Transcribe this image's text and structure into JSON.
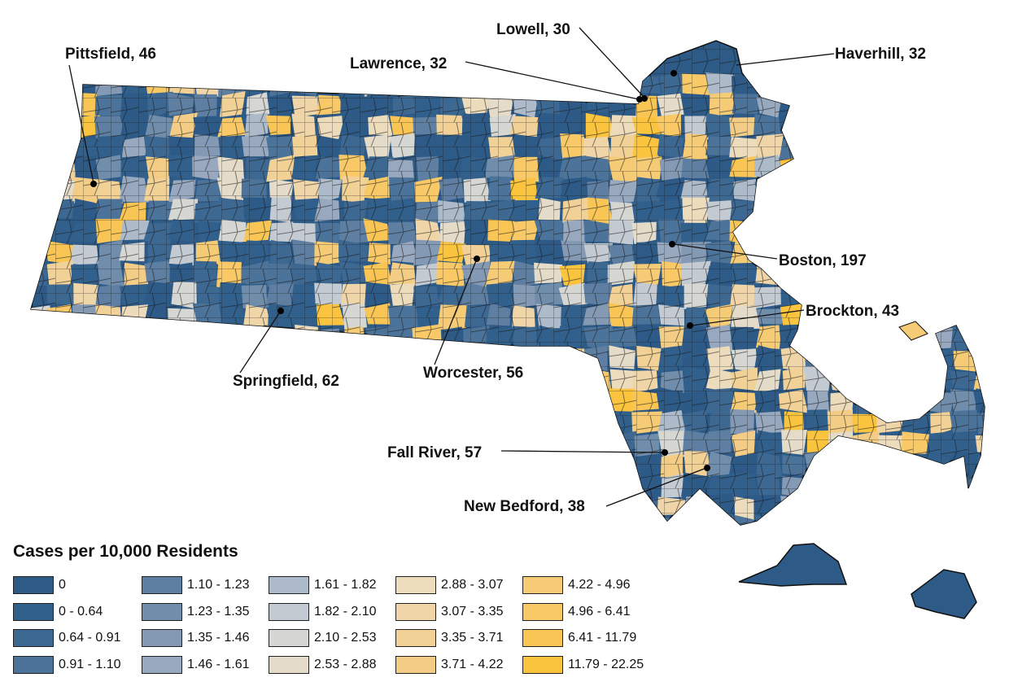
{
  "legend": {
    "title": "Cases per 10,000 Residents",
    "items": [
      {
        "label": "0",
        "color": "#2d5a86"
      },
      {
        "label": "0 - 0.64",
        "color": "#32608c"
      },
      {
        "label": "0.64 - 0.91",
        "color": "#3d6892"
      },
      {
        "label": "0.91 - 1.10",
        "color": "#4c7399"
      },
      {
        "label": "1.10 - 1.23",
        "color": "#5e7fa2"
      },
      {
        "label": "1.23 - 1.35",
        "color": "#708dac"
      },
      {
        "label": "1.35 - 1.46",
        "color": "#8499b3"
      },
      {
        "label": "1.46 - 1.61",
        "color": "#98a9bf"
      },
      {
        "label": "1.61 - 1.82",
        "color": "#adbac9"
      },
      {
        "label": "1.82 - 2.10",
        "color": "#c3cad2"
      },
      {
        "label": "2.10 - 2.53",
        "color": "#d6d6d2"
      },
      {
        "label": "2.53 - 2.88",
        "color": "#e4dcc9"
      },
      {
        "label": "2.88 - 3.07",
        "color": "#ecdcbc"
      },
      {
        "label": "3.07 - 3.35",
        "color": "#efd5a8"
      },
      {
        "label": "3.35 - 3.71",
        "color": "#f1d196"
      },
      {
        "label": "3.71 - 4.22",
        "color": "#f3cd86"
      },
      {
        "label": "4.22 - 4.96",
        "color": "#f6cb76"
      },
      {
        "label": "4.96 - 6.41",
        "color": "#f8c966"
      },
      {
        "label": "6.41 - 11.79",
        "color": "#f9c655"
      },
      {
        "label": "11.79 - 22.25",
        "color": "#fbc43f"
      }
    ]
  },
  "cities": [
    {
      "name": "Pittsfield",
      "value": 46,
      "label": "Pittsfield, 46"
    },
    {
      "name": "Lowell",
      "value": 30,
      "label": "Lowell, 30"
    },
    {
      "name": "Lawrence",
      "value": 32,
      "label": "Lawrence, 32"
    },
    {
      "name": "Haverhill",
      "value": 32,
      "label": "Haverhill, 32"
    },
    {
      "name": "Boston",
      "value": 197,
      "label": "Boston, 197"
    },
    {
      "name": "Brockton",
      "value": 43,
      "label": "Brockton, 43"
    },
    {
      "name": "Springfield",
      "value": 62,
      "label": "Springfield, 62"
    },
    {
      "name": "Worcester",
      "value": 56,
      "label": "Worcester, 56"
    },
    {
      "name": "Fall River",
      "value": 57,
      "label": "Fall River, 57"
    },
    {
      "name": "New Bedford",
      "value": 38,
      "label": "New Bedford, 38"
    }
  ]
}
